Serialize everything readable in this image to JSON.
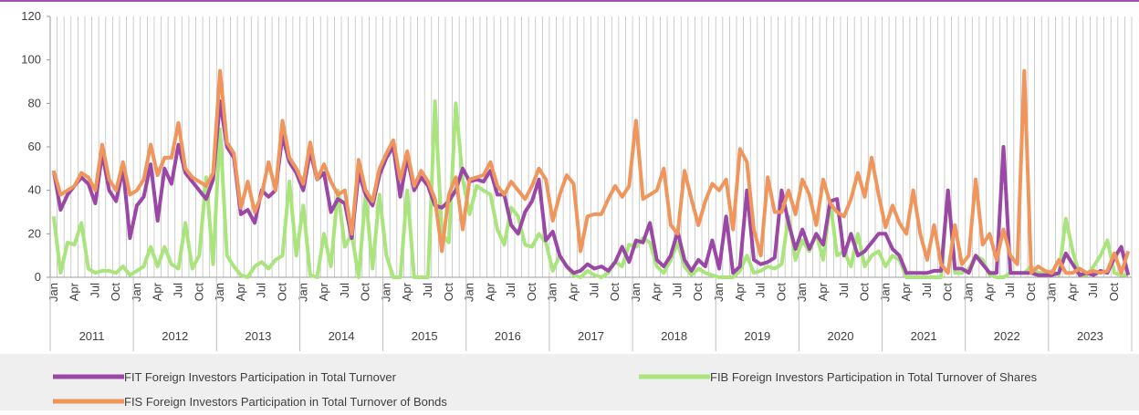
{
  "chart_data": {
    "type": "line",
    "categories": [
      "Jan",
      null,
      null,
      "Apr",
      null,
      null,
      "Jul",
      null,
      null,
      "Oct",
      null,
      null,
      "Jan",
      null,
      null,
      "Apr",
      null,
      null,
      "Jul",
      null,
      null,
      "Oct",
      null,
      null,
      "Jan",
      null,
      null,
      "Apr",
      null,
      null,
      "Jul",
      null,
      null,
      "Oct",
      null,
      null,
      "Jan",
      null,
      null,
      "Apr",
      null,
      null,
      "Jul",
      null,
      null,
      "Oct",
      null,
      null,
      "Jan",
      null,
      null,
      "Apr",
      null,
      null,
      "Jul",
      null,
      null,
      "Oct",
      null,
      null,
      "Jan",
      null,
      null,
      "Apr",
      null,
      null,
      "Jul",
      null,
      null,
      "Oct",
      null,
      null,
      "Jan",
      null,
      null,
      "Apr",
      null,
      null,
      "Jul",
      null,
      null,
      "Oct",
      null,
      null,
      "Jan",
      null,
      null,
      "Apr",
      null,
      null,
      "Jul",
      null,
      null,
      "Oct",
      null,
      null,
      "Jan",
      null,
      null,
      "Apr",
      null,
      null,
      "Jul",
      null,
      null,
      "Oct",
      null,
      null,
      "Jan",
      null,
      null,
      "Apr",
      null,
      null,
      "Jul",
      null,
      null,
      "Oct",
      null,
      null,
      "Jan",
      null,
      null,
      "Apr",
      null,
      null,
      "Jul",
      null,
      null,
      "Oct",
      null,
      null,
      "Jan",
      null,
      null,
      "Apr",
      null,
      null,
      "Jul",
      null,
      null,
      "Oct",
      null,
      null,
      "Jan",
      null,
      null,
      "Apr",
      null,
      null,
      "Jul",
      null,
      null,
      "Oct",
      null,
      null
    ],
    "years": [
      "2011",
      "2012",
      "2013",
      "2014",
      "2015",
      "2016",
      "2017",
      "2018",
      "2019",
      "2020",
      "2021",
      "2022",
      "2023"
    ],
    "series": [
      {
        "name": "FIT Foreign Investors Participation in Total Turnover",
        "color": "#9b47a6",
        "values": [
          49,
          31,
          38,
          42,
          46,
          43,
          34,
          57,
          40,
          35,
          50,
          18,
          33,
          37,
          52,
          26,
          50,
          43,
          61,
          48,
          44,
          40,
          36,
          45,
          81,
          60,
          55,
          29,
          31,
          25,
          40,
          37,
          40,
          65,
          53,
          48,
          40,
          58,
          45,
          48,
          30,
          36,
          34,
          18,
          48,
          38,
          33,
          47,
          55,
          60,
          37,
          55,
          40,
          46,
          42,
          33,
          32,
          35,
          40,
          50,
          44,
          45,
          44,
          49,
          38,
          38,
          24,
          20,
          30,
          35,
          45,
          17,
          21,
          10,
          5,
          2,
          3,
          6,
          4,
          5,
          3,
          7,
          14,
          7,
          17,
          16,
          25,
          8,
          5,
          10,
          21,
          8,
          3,
          8,
          5,
          17,
          4,
          28,
          2,
          5,
          40,
          8,
          6,
          7,
          9,
          40,
          25,
          13,
          22,
          13,
          20,
          15,
          35,
          36,
          10,
          20,
          10,
          12,
          16,
          20,
          20,
          13,
          10,
          2,
          2,
          2,
          2,
          3,
          3,
          40,
          4,
          4,
          2,
          10,
          6,
          2,
          2,
          60,
          2,
          2,
          2,
          2,
          1,
          1,
          1,
          2,
          11,
          6,
          1,
          2,
          1,
          3,
          2,
          9,
          14,
          1
        ]
      },
      {
        "name": "FIB Foreign Investors Participation in Total Turnover of Shares",
        "color": "#a9e57c",
        "values": [
          28,
          2,
          16,
          15,
          25,
          4,
          2,
          3,
          3,
          2,
          5,
          1,
          3,
          5,
          14,
          5,
          14,
          6,
          4,
          25,
          4,
          10,
          46,
          6,
          68,
          10,
          5,
          1,
          0,
          5,
          7,
          4,
          8,
          10,
          44,
          10,
          33,
          1,
          0,
          20,
          5,
          40,
          14,
          20,
          0,
          38,
          4,
          38,
          10,
          0,
          0,
          40,
          0,
          0,
          0,
          81,
          20,
          16,
          80,
          45,
          29,
          42,
          40,
          38,
          22,
          15,
          32,
          28,
          15,
          14,
          20,
          16,
          3,
          10,
          5,
          1,
          0,
          3,
          1,
          0,
          2,
          7,
          5,
          15,
          14,
          18,
          16,
          5,
          2,
          8,
          16,
          5,
          1,
          4,
          2,
          1,
          0,
          0,
          0,
          3,
          10,
          2,
          3,
          5,
          4,
          6,
          28,
          8,
          17,
          12,
          20,
          8,
          35,
          10,
          12,
          5,
          20,
          5,
          10,
          12,
          5,
          10,
          8,
          0,
          0,
          0,
          0,
          0,
          0,
          40,
          2,
          2,
          4,
          10,
          8,
          1,
          0,
          0,
          2,
          2,
          2,
          5,
          2,
          2,
          3,
          1,
          27,
          12,
          1,
          1,
          5,
          10,
          17,
          2,
          1,
          1
        ]
      },
      {
        "name": "FIS Foreign Investors Participation in Total Turnover of Bonds",
        "color": "#f0955b",
        "values": [
          49,
          38,
          40,
          42,
          48,
          46,
          40,
          61,
          45,
          40,
          53,
          38,
          40,
          45,
          61,
          47,
          55,
          55,
          71,
          50,
          46,
          44,
          42,
          48,
          95,
          62,
          57,
          32,
          44,
          30,
          38,
          53,
          40,
          72,
          55,
          50,
          43,
          62,
          45,
          52,
          44,
          38,
          40,
          20,
          54,
          40,
          35,
          50,
          57,
          63,
          45,
          58,
          42,
          49,
          44,
          36,
          12,
          38,
          46,
          22,
          45,
          46,
          47,
          53,
          42,
          38,
          44,
          40,
          36,
          42,
          50,
          45,
          26,
          38,
          47,
          43,
          12,
          28,
          29,
          29,
          36,
          42,
          37,
          42,
          72,
          36,
          38,
          40,
          50,
          24,
          20,
          49,
          36,
          24,
          35,
          43,
          40,
          45,
          22,
          59,
          53,
          22,
          10,
          46,
          30,
          30,
          40,
          29,
          45,
          38,
          24,
          45,
          34,
          30,
          28,
          36,
          48,
          37,
          55,
          38,
          23,
          33,
          25,
          20,
          40,
          20,
          8,
          24,
          6,
          2,
          24,
          6,
          10,
          45,
          15,
          20,
          8,
          22,
          10,
          6,
          95,
          2,
          5,
          3,
          2,
          8,
          2,
          2,
          4,
          2,
          3,
          2,
          3,
          11,
          2,
          12
        ]
      }
    ],
    "ylim": [
      0,
      120
    ],
    "yticks": [
      0,
      20,
      40,
      60,
      80,
      100,
      120
    ]
  }
}
